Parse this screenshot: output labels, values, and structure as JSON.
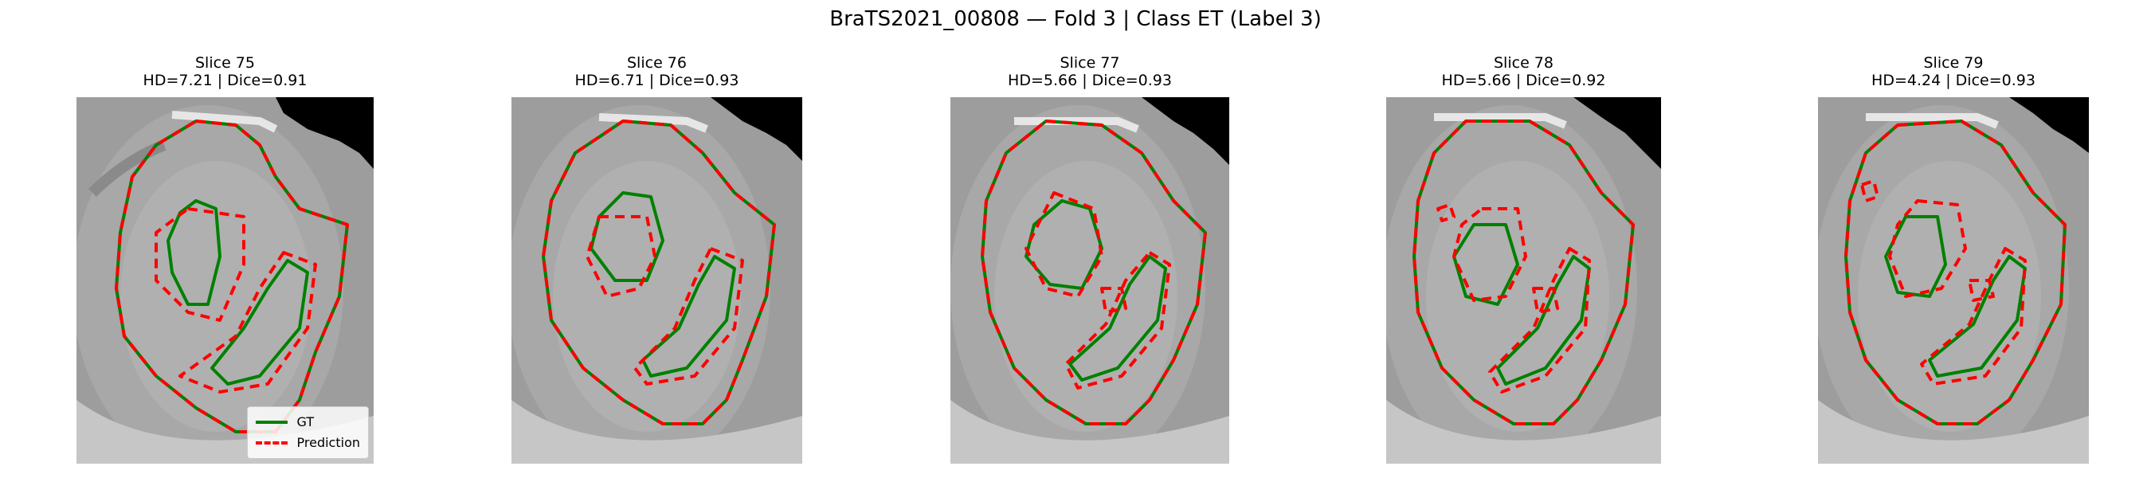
{
  "figure": {
    "title": "BraTS2021_00808 — Fold 3 | Class ET (Label 3)"
  },
  "panels": [
    {
      "slice": "Slice 75",
      "metrics": "HD=7.21 | Dice=0.91"
    },
    {
      "slice": "Slice 76",
      "metrics": "HD=6.71 | Dice=0.93"
    },
    {
      "slice": "Slice 77",
      "metrics": "HD=5.66 | Dice=0.93"
    },
    {
      "slice": "Slice 78",
      "metrics": "HD=5.66 | Dice=0.92"
    },
    {
      "slice": "Slice 79",
      "metrics": "HD=4.24 | Dice=0.93"
    }
  ],
  "legend": {
    "gt_label": "GT",
    "pred_label": "Prediction"
  },
  "colors": {
    "gt": "#008000",
    "prediction": "#ff0000",
    "background_mri": "#9a9a9a"
  }
}
